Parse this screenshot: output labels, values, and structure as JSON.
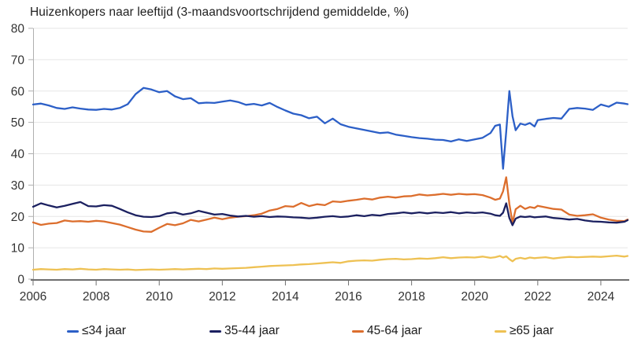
{
  "chart_data": {
    "type": "line",
    "title": "Huizenkopers naar leeftijd (3-maandsvoortschrijdend gemiddelde, %)",
    "xlabel": "",
    "ylabel": "",
    "xlim": [
      2006,
      2024.85
    ],
    "ylim": [
      0,
      80
    ],
    "xticks": [
      2006,
      2008,
      2010,
      2012,
      2014,
      2016,
      2018,
      2020,
      2022,
      2024
    ],
    "yticks": [
      0,
      10,
      20,
      30,
      40,
      50,
      60,
      70,
      80
    ],
    "grid": true,
    "legend_position": "bottom",
    "colors": {
      "grid": "#e6e6e6",
      "axis_y": "#b0b0b0",
      "axis_x": "#6f6f6f",
      "text": "#333333"
    },
    "x": [
      2006,
      2006.25,
      2006.5,
      2006.75,
      2007,
      2007.25,
      2007.5,
      2007.75,
      2008,
      2008.25,
      2008.5,
      2008.75,
      2009,
      2009.25,
      2009.5,
      2009.75,
      2010,
      2010.25,
      2010.5,
      2010.75,
      2011,
      2011.25,
      2011.5,
      2011.75,
      2012,
      2012.25,
      2012.5,
      2012.75,
      2013,
      2013.25,
      2013.5,
      2013.75,
      2014,
      2014.25,
      2014.5,
      2014.75,
      2015,
      2015.25,
      2015.5,
      2015.75,
      2016,
      2016.25,
      2016.5,
      2016.75,
      2017,
      2017.25,
      2017.5,
      2017.75,
      2018,
      2018.25,
      2018.5,
      2018.75,
      2019,
      2019.25,
      2019.5,
      2019.75,
      2020,
      2020.25,
      2020.5,
      2020.65,
      2020.8,
      2020.9,
      2021,
      2021.1,
      2021.2,
      2021.3,
      2021.45,
      2021.6,
      2021.75,
      2021.9,
      2022,
      2022.25,
      2022.5,
      2022.75,
      2023,
      2023.25,
      2023.5,
      2023.75,
      2024,
      2024.25,
      2024.5,
      2024.75,
      2024.85
    ],
    "series": [
      {
        "name": "≤34 jaar",
        "color": "#2c5fc7",
        "values": [
          55.7,
          56,
          55.4,
          54.6,
          54.3,
          54.8,
          54.4,
          54.1,
          54,
          54.3,
          54.1,
          54.6,
          55.8,
          59,
          61,
          60.5,
          59.6,
          60,
          58.3,
          57.4,
          57.7,
          56.1,
          56.3,
          56.2,
          56.6,
          57,
          56.5,
          55.6,
          55.9,
          55.4,
          56.2,
          54.9,
          53.8,
          52.8,
          52.3,
          51.3,
          51.8,
          49.7,
          51.2,
          49.4,
          48.6,
          48.1,
          47.6,
          47.1,
          46.6,
          46.8,
          46.1,
          45.7,
          45.3,
          45,
          44.8,
          44.5,
          44.4,
          43.9,
          44.6,
          44.1,
          44.6,
          45.1,
          46.6,
          48.9,
          49.3,
          35.2,
          47,
          60,
          52,
          47.5,
          49.6,
          49.2,
          49.8,
          48.7,
          50.7,
          51.1,
          51.4,
          51.2,
          54.3,
          54.6,
          54.4,
          54,
          55.7,
          55,
          56.3,
          56,
          55.8
        ]
      },
      {
        "name": "35-44 jaar",
        "color": "#1b2060",
        "values": [
          23.1,
          24.2,
          23.5,
          22.9,
          23.4,
          24,
          24.6,
          23.3,
          23.2,
          23.6,
          23.4,
          22.4,
          21.3,
          20.4,
          19.9,
          19.8,
          20.1,
          21,
          21.3,
          20.6,
          21,
          21.8,
          21.2,
          20.6,
          20.8,
          20.3,
          20,
          20.2,
          19.9,
          20.1,
          19.8,
          20,
          19.9,
          19.7,
          19.6,
          19.4,
          19.6,
          19.9,
          20.1,
          19.8,
          20,
          20.4,
          20.1,
          20.5,
          20.3,
          20.8,
          21,
          21.3,
          21,
          21.3,
          21,
          21.3,
          21.1,
          21.4,
          21,
          21.3,
          21.1,
          21.3,
          20.9,
          20.4,
          20.2,
          21.2,
          24.2,
          19.5,
          17.2,
          19.3,
          20,
          19.8,
          20,
          19.7,
          19.8,
          20,
          19.5,
          19.3,
          19,
          19.2,
          18.7,
          18.4,
          18.3,
          18.1,
          18,
          18.3,
          18.8
        ]
      },
      {
        "name": "45-64 jaar",
        "color": "#dc6e2d",
        "values": [
          18.1,
          17.3,
          17.7,
          17.9,
          18.7,
          18.4,
          18.5,
          18.3,
          18.6,
          18.4,
          17.9,
          17.4,
          16.6,
          15.8,
          15.2,
          15.1,
          16.4,
          17.6,
          17.2,
          17.8,
          18.9,
          18.4,
          19,
          19.6,
          19.1,
          19.6,
          19.9,
          20.1,
          20.4,
          20.9,
          21.9,
          22.4,
          23.3,
          23.1,
          24.3,
          23.3,
          23.9,
          23.6,
          24.8,
          24.6,
          25,
          25.3,
          25.7,
          25.4,
          26,
          26.3,
          26,
          26.4,
          26.5,
          27,
          26.7,
          26.9,
          27.2,
          26.9,
          27.2,
          27,
          27.1,
          26.8,
          26,
          25.3,
          25.7,
          28,
          32.5,
          24,
          18,
          22.3,
          23.4,
          22.4,
          23,
          22.7,
          23.4,
          22.9,
          22.4,
          22.2,
          20.6,
          20.2,
          20.4,
          20.7,
          19.6,
          19,
          18.6,
          18.5,
          19
        ]
      },
      {
        "name": "≥65 jaar",
        "color": "#eec153",
        "values": [
          3,
          3.2,
          3.1,
          3,
          3.2,
          3.1,
          3.3,
          3.1,
          3,
          3.2,
          3.1,
          3,
          3.1,
          2.9,
          3,
          3.1,
          3,
          3.1,
          3.2,
          3.1,
          3.2,
          3.3,
          3.2,
          3.4,
          3.3,
          3.4,
          3.5,
          3.6,
          3.8,
          4,
          4.2,
          4.3,
          4.4,
          4.5,
          4.7,
          4.8,
          5,
          5.2,
          5.4,
          5.2,
          5.7,
          5.9,
          6,
          5.9,
          6.2,
          6.4,
          6.5,
          6.3,
          6.4,
          6.6,
          6.5,
          6.7,
          7,
          6.7,
          6.9,
          7,
          6.9,
          7.2,
          6.8,
          7,
          7.4,
          6.9,
          7.3,
          6.4,
          5.7,
          6.5,
          6.8,
          6.5,
          6.9,
          6.7,
          6.8,
          7,
          6.6,
          6.9,
          7.1,
          7,
          7.1,
          7.2,
          7.1,
          7.3,
          7.5,
          7.2,
          7.4
        ]
      }
    ]
  }
}
